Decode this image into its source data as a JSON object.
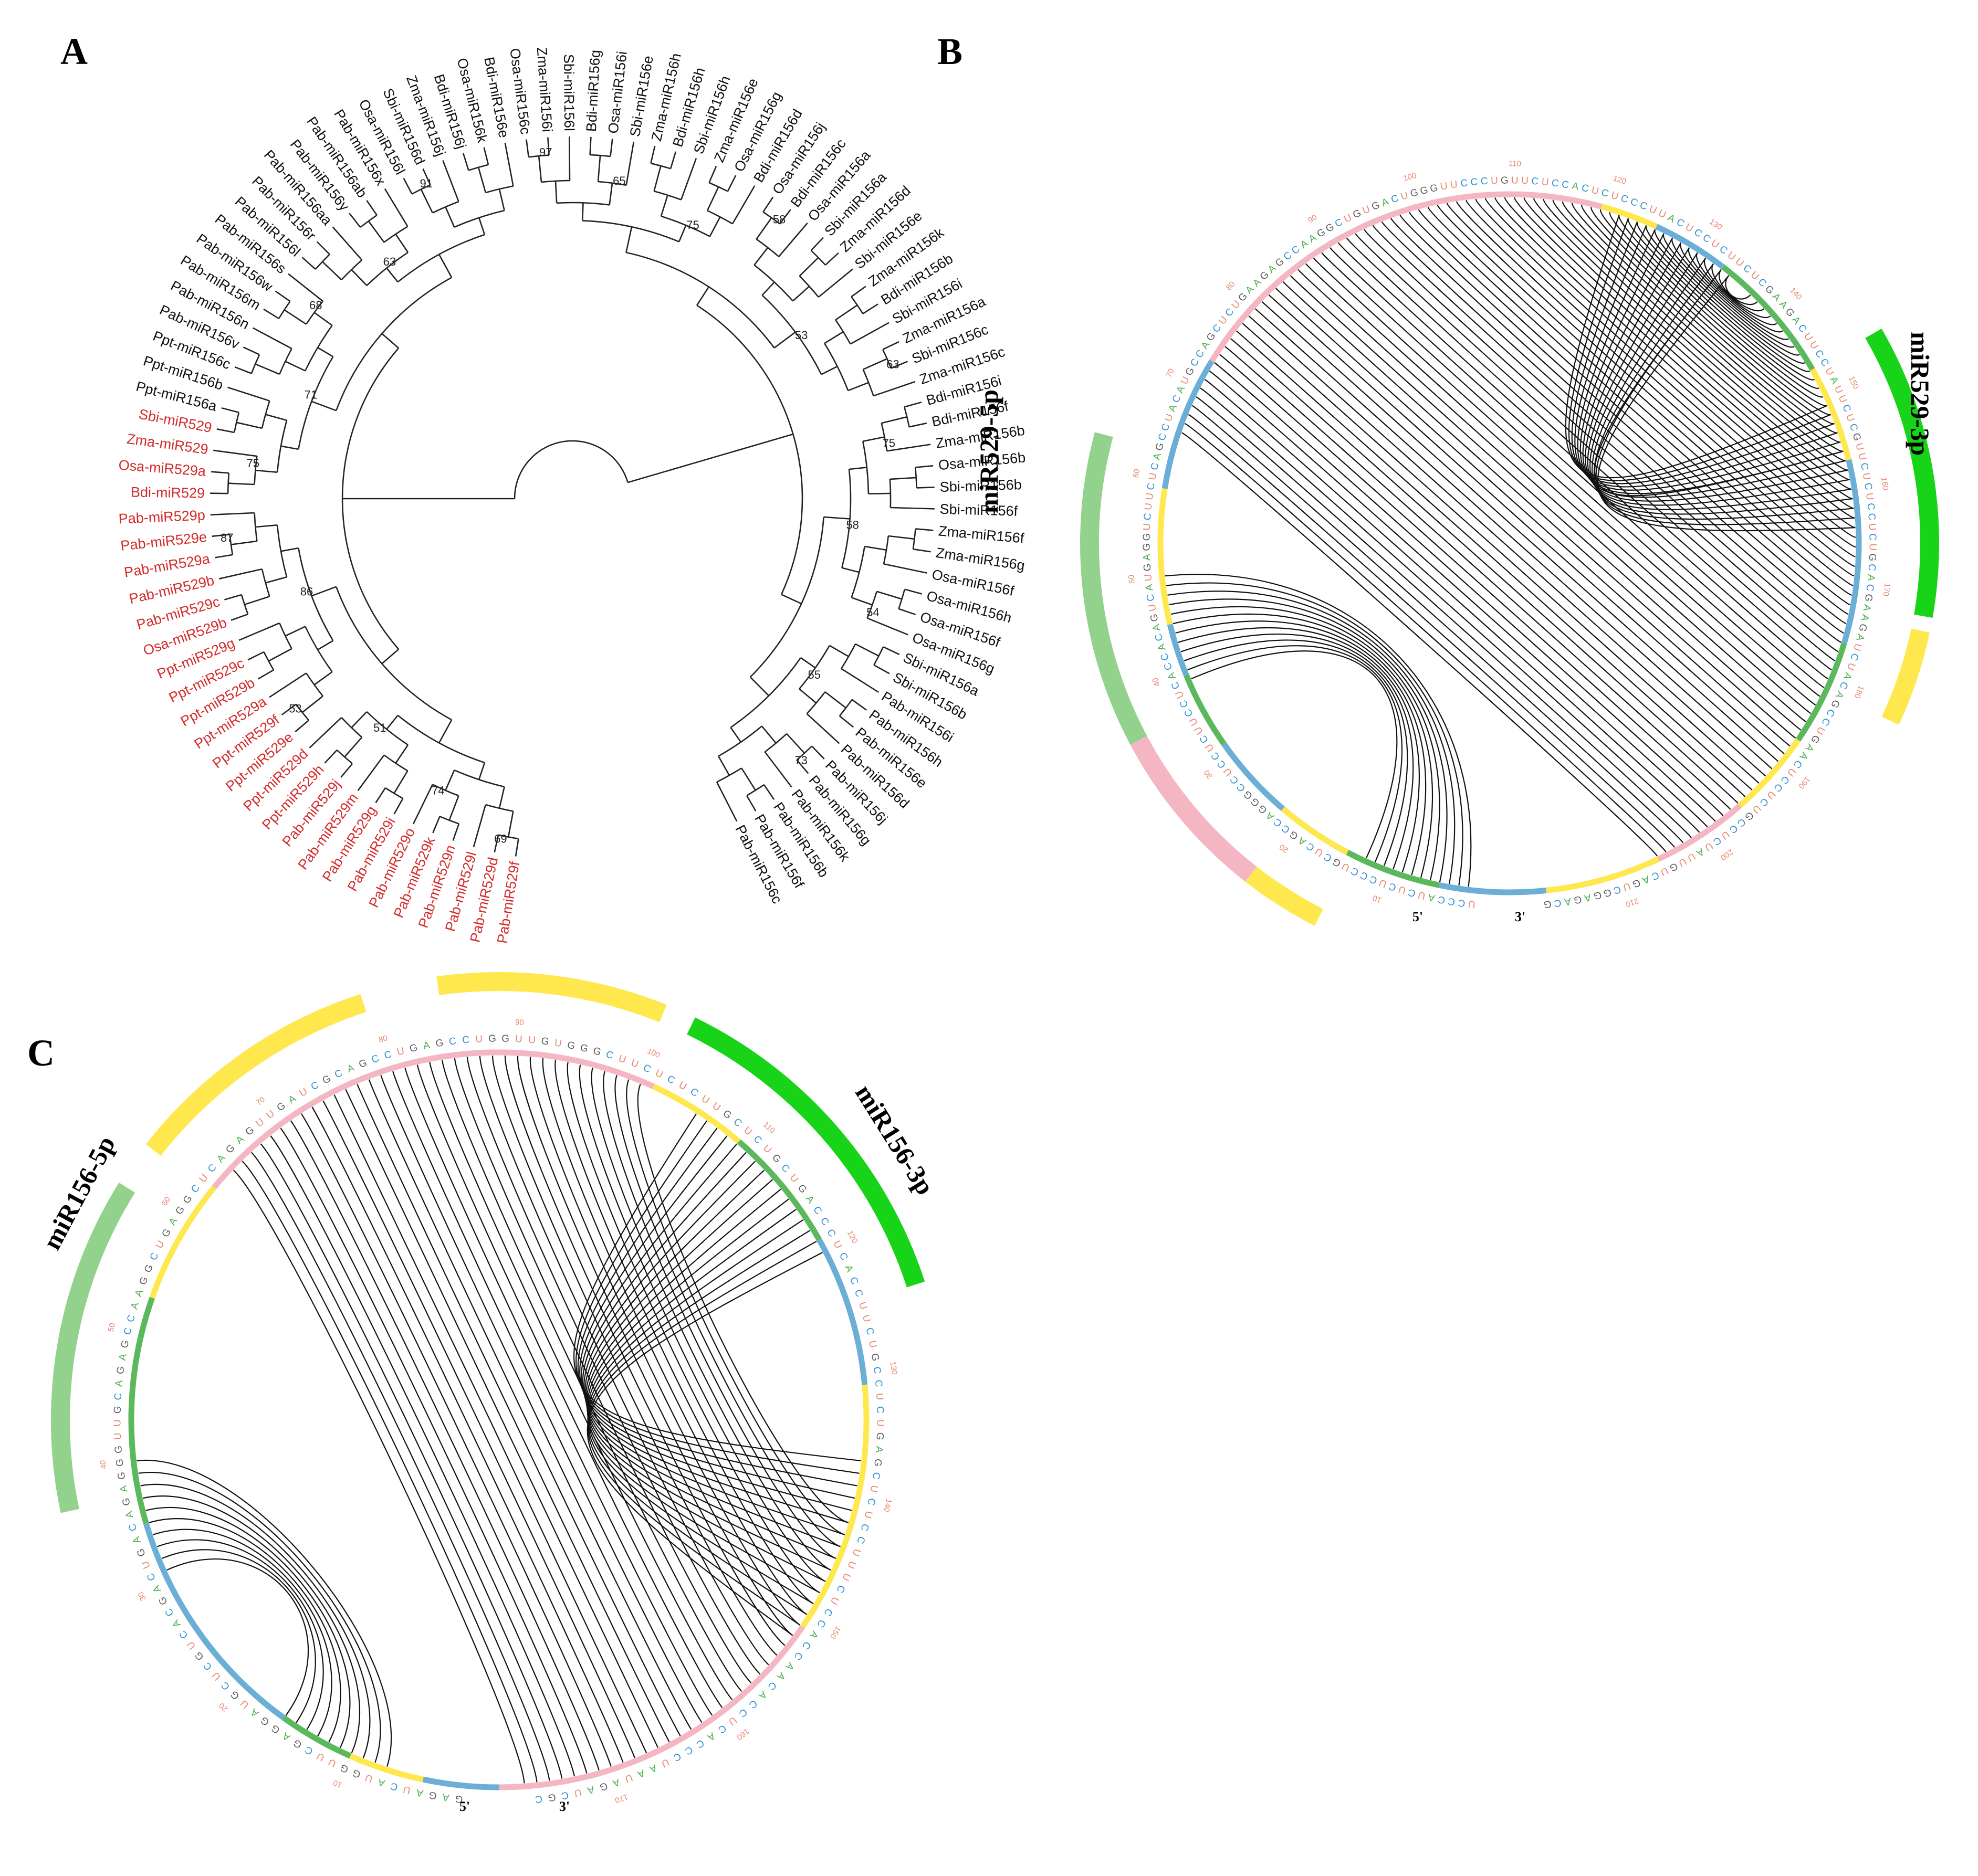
{
  "panels": {
    "a": {
      "letter": "A"
    },
    "b": {
      "letter": "B"
    },
    "c": {
      "letter": "C"
    }
  },
  "tree": {
    "leaves": [
      {
        "label": "Pab-miR529f",
        "color": "red"
      },
      {
        "label": "Pab-miR529d",
        "color": "red"
      },
      {
        "label": "Pab-miR529l",
        "color": "red"
      },
      {
        "label": "Pab-miR529n",
        "color": "red"
      },
      {
        "label": "Pab-miR529k",
        "color": "red"
      },
      {
        "label": "Pab-miR529o",
        "color": "red"
      },
      {
        "label": "Pab-miR529i",
        "color": "red"
      },
      {
        "label": "Pab-miR529g",
        "color": "red"
      },
      {
        "label": "Pab-miR529m",
        "color": "red"
      },
      {
        "label": "Pab-miR529j",
        "color": "red"
      },
      {
        "label": "Ppt-miR529h",
        "color": "red"
      },
      {
        "label": "Ppt-miR529d",
        "color": "red"
      },
      {
        "label": "Ppt-miR529e",
        "color": "red"
      },
      {
        "label": "Ppt-miR529f",
        "color": "red"
      },
      {
        "label": "Ppt-miR529a",
        "color": "red"
      },
      {
        "label": "Ppt-miR529b",
        "color": "red"
      },
      {
        "label": "Ppt-miR529c",
        "color": "red"
      },
      {
        "label": "Ppt-miR529g",
        "color": "red"
      },
      {
        "label": "Osa-miR529b",
        "color": "red"
      },
      {
        "label": "Pab-miR529c",
        "color": "red"
      },
      {
        "label": "Pab-miR529b",
        "color": "red"
      },
      {
        "label": "Pab-miR529a",
        "color": "red"
      },
      {
        "label": "Pab-miR529e",
        "color": "red"
      },
      {
        "label": "Pab-miR529p",
        "color": "red"
      },
      {
        "label": "Bdi-miR529",
        "color": "red"
      },
      {
        "label": "Osa-miR529a",
        "color": "red"
      },
      {
        "label": "Zma-miR529",
        "color": "red"
      },
      {
        "label": "Sbi-miR529",
        "color": "red"
      },
      {
        "label": "Ppt-miR156a",
        "color": "black"
      },
      {
        "label": "Ppt-miR156b",
        "color": "black"
      },
      {
        "label": "Ppt-miR156c",
        "color": "black"
      },
      {
        "label": "Pab-miR156v",
        "color": "black"
      },
      {
        "label": "Pab-miR156n",
        "color": "black"
      },
      {
        "label": "Pab-miR156m",
        "color": "black"
      },
      {
        "label": "Pab-miR156w",
        "color": "black"
      },
      {
        "label": "Pab-miR156s",
        "color": "black"
      },
      {
        "label": "Pab-miR156l",
        "color": "black"
      },
      {
        "label": "Pab-miR156r",
        "color": "black"
      },
      {
        "label": "Pab-miR156aa",
        "color": "black"
      },
      {
        "label": "Pab-miR156y",
        "color": "black"
      },
      {
        "label": "Pab-miR156ab",
        "color": "black"
      },
      {
        "label": "Pab-miR156x",
        "color": "black"
      },
      {
        "label": "Osa-miR156l",
        "color": "black"
      },
      {
        "label": "Sbi-miR156d",
        "color": "black"
      },
      {
        "label": "Zma-miR156j",
        "color": "black"
      },
      {
        "label": "Bdi-miR156j",
        "color": "black"
      },
      {
        "label": "Osa-miR156k",
        "color": "black"
      },
      {
        "label": "Bdi-miR156e",
        "color": "black"
      },
      {
        "label": "Osa-miR156c",
        "color": "black"
      },
      {
        "label": "Zma-miR156i",
        "color": "black"
      },
      {
        "label": "Sbi-miR156l",
        "color": "black"
      },
      {
        "label": "Bdi-miR156g",
        "color": "black"
      },
      {
        "label": "Osa-miR156i",
        "color": "black"
      },
      {
        "label": "Sbi-miR156e",
        "color": "black"
      },
      {
        "label": "Zma-miR156h",
        "color": "black"
      },
      {
        "label": "Bdi-miR156h",
        "color": "black"
      },
      {
        "label": "Sbi-miR156h",
        "color": "black"
      },
      {
        "label": "Zma-miR156e",
        "color": "black"
      },
      {
        "label": "Osa-miR156g",
        "color": "black"
      },
      {
        "label": "Bdi-miR156d",
        "color": "black"
      },
      {
        "label": "Osa-miR156j",
        "color": "black"
      },
      {
        "label": "Bdi-miR156c",
        "color": "black"
      },
      {
        "label": "Osa-miR156a",
        "color": "black"
      },
      {
        "label": "Sbi-miR156a",
        "color": "black"
      },
      {
        "label": "Zma-miR156d",
        "color": "black"
      },
      {
        "label": "Sbi-miR156e",
        "color": "black"
      },
      {
        "label": "Zma-miR156k",
        "color": "black"
      },
      {
        "label": "Bdi-miR156b",
        "color": "black"
      },
      {
        "label": "Sbi-miR156i",
        "color": "black"
      },
      {
        "label": "Zma-miR156a",
        "color": "black"
      },
      {
        "label": "Sbi-miR156c",
        "color": "black"
      },
      {
        "label": "Zma-miR156c",
        "color": "black"
      },
      {
        "label": "Bdi-miR156i",
        "color": "black"
      },
      {
        "label": "Bdi-miR156f",
        "color": "black"
      },
      {
        "label": "Zma-miR156b",
        "color": "black"
      },
      {
        "label": "Osa-miR156b",
        "color": "black"
      },
      {
        "label": "Sbi-miR156b",
        "color": "black"
      },
      {
        "label": "Sbi-miR156f",
        "color": "black"
      },
      {
        "label": "Zma-miR156f",
        "color": "black"
      },
      {
        "label": "Zma-miR156g",
        "color": "black"
      },
      {
        "label": "Osa-miR156f",
        "color": "black"
      },
      {
        "label": "Osa-miR156h",
        "color": "black"
      },
      {
        "label": "Osa-miR156f",
        "color": "black"
      },
      {
        "label": "Osa-miR156g",
        "color": "black"
      },
      {
        "label": "Sbi-miR156a",
        "color": "black"
      },
      {
        "label": "Sbi-miR156b",
        "color": "black"
      },
      {
        "label": "Pab-miR156i",
        "color": "black"
      },
      {
        "label": "Pab-miR156h",
        "color": "black"
      },
      {
        "label": "Pab-miR156e",
        "color": "black"
      },
      {
        "label": "Pab-miR156d",
        "color": "black"
      },
      {
        "label": "Pab-miR156j",
        "color": "black"
      },
      {
        "label": "Pab-miR156g",
        "color": "black"
      },
      {
        "label": "Pab-miR156k",
        "color": "black"
      },
      {
        "label": "Pab-miR156b",
        "color": "black"
      },
      {
        "label": "Pab-miR156f",
        "color": "black"
      },
      {
        "label": "Pab-miR156c",
        "color": "black"
      }
    ],
    "bootstrap": [
      "69",
      "74",
      "51",
      "53",
      "86",
      "87",
      "75",
      "71",
      "68",
      "63",
      "91",
      "97",
      "65",
      "75",
      "58",
      "53",
      "63",
      "75",
      "58",
      "54",
      "55",
      "73"
    ]
  },
  "miR529": {
    "labels": {
      "five_p": "miR529-5p",
      "three_p": "miR529-3p"
    },
    "ends": {
      "five": "5'",
      "three": "3'"
    },
    "sequence": "UCCCAUCUCUCCCUGCUCAGCCAGGGCCUCCUCUUCCUCACCACAGUCAUGAGGUCUUCUCAGCCUACAUGCCAGCUCUGAAGAGCCAAGGCUGUGACUGGGUUCCCUGUUCUCCACUCUCCCUUACUCCUCUUCUCGAAGACUUCCUAUUCUCGUUCUCUCCUCUGCACGAAGAUCUACAGCCUGAACUCCUCUGCCUCUAUUGUCAGUCGGAGACG",
    "ticks": [
      "10",
      "20",
      "30",
      "40",
      "50",
      "60",
      "70",
      "80",
      "90",
      "100",
      "110",
      "120",
      "130",
      "140",
      "150",
      "160",
      "170",
      "180",
      "190",
      "200",
      "210",
      "220"
    ],
    "colors": {
      "pink": "#f4b6c2",
      "blue": "#6baed6",
      "yellow": "#ffe84d",
      "green": "#5cb85c",
      "label_green": "#92d28c",
      "bright_green": "#18d418"
    }
  },
  "miR156": {
    "labels": {
      "five_p": "miR156-5p",
      "three_p": "miR156-3p"
    },
    "ends": {
      "five": "5'",
      "three": "3'"
    },
    "sequence": "GAGAUCAUGGUUCGAGGAUGCUCGUCACGACUGACAGAGGGUUGCAGAGCCAAGGCUGAGGCUCAGAGUUGAUCGCAGCCUGAGCCUGGUUGUGGGCUUCUCUCUUGCUCUGCUGACCCUCACCUUCUGCCUCUGAGCUCUCCUUUCUCCACCAACACCUCACCCUAAUAGAUCGC",
    "ticks": [
      "10",
      "20",
      "30",
      "40",
      "50",
      "60",
      "70",
      "80",
      "90",
      "100",
      "110",
      "120",
      "130",
      "140",
      "150",
      "160",
      "170",
      "180",
      "190"
    ],
    "colors": {
      "pink": "#f4b6c2",
      "blue": "#6baed6",
      "yellow": "#ffe84d",
      "green": "#5cb85c",
      "label_green": "#92d28c",
      "bright_green": "#18d418"
    }
  },
  "base_colors": {
    "A": "#4caf50",
    "G": "#5b5b5b",
    "C": "#2f8fd0",
    "U": "#e8866e"
  }
}
